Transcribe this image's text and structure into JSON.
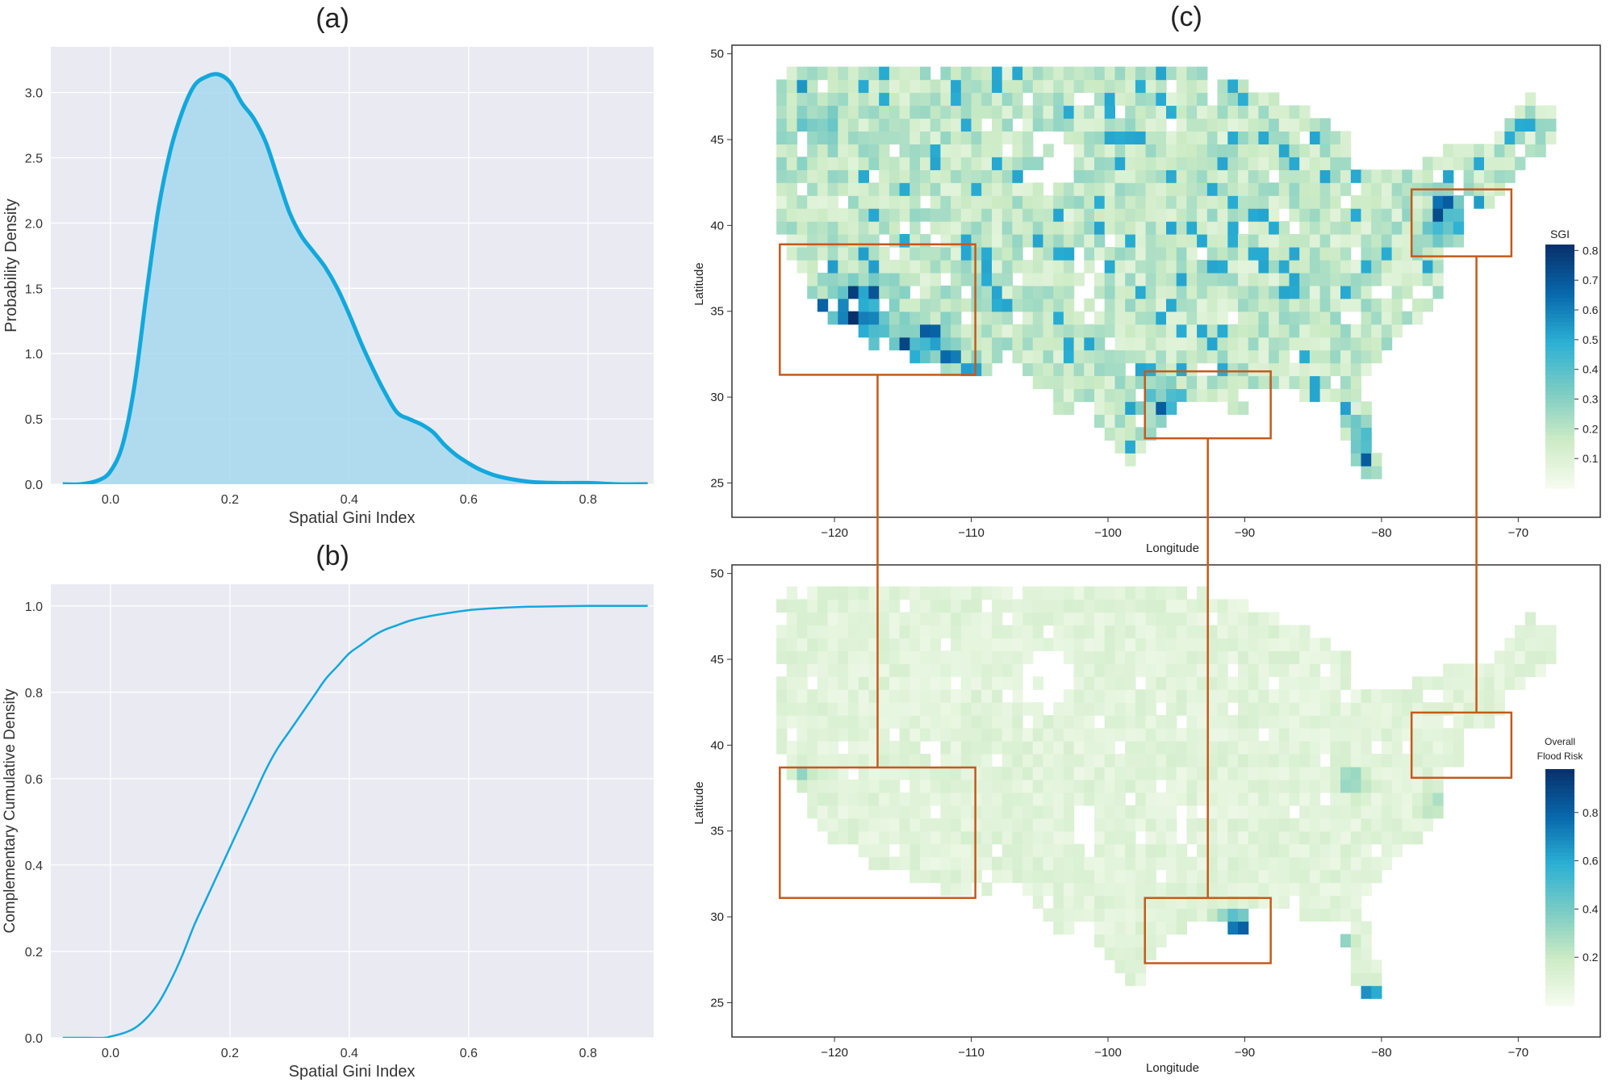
{
  "panels": {
    "a": {
      "label": "(a)"
    },
    "b": {
      "label": "(b)"
    },
    "c": {
      "label": "(c)"
    }
  },
  "colors": {
    "curve": "#12a8dc",
    "fill": "#a6d8ef",
    "plot_bg": "#eaeaf2",
    "grid": "#ffffff",
    "inset_box": "#c45a1a",
    "cmap": [
      "#f7fcf0",
      "#ccebc5",
      "#7bccc4",
      "#2bb0d4",
      "#0868ac",
      "#08306b"
    ]
  },
  "chart_data": [
    {
      "id": "a",
      "type": "area",
      "xlabel": "Spatial Gini Index",
      "ylabel": "Probability Density",
      "xlim": [
        -0.1,
        0.91
      ],
      "ylim": [
        0,
        3.35
      ],
      "xticks": [
        0.0,
        0.2,
        0.4,
        0.6,
        0.8
      ],
      "xticklabels": [
        "0.0",
        "0.2",
        "0.4",
        "0.6",
        "0.8"
      ],
      "yticks": [
        0.0,
        0.5,
        1.0,
        1.5,
        2.0,
        2.5,
        3.0
      ],
      "yticklabels": [
        "0.0",
        "0.5",
        "1.0",
        "1.5",
        "2.0",
        "2.5",
        "3.0"
      ],
      "grid": true,
      "x": [
        -0.08,
        -0.05,
        -0.02,
        0.0,
        0.02,
        0.04,
        0.06,
        0.08,
        0.1,
        0.12,
        0.14,
        0.16,
        0.18,
        0.2,
        0.22,
        0.24,
        0.26,
        0.28,
        0.3,
        0.32,
        0.34,
        0.36,
        0.38,
        0.4,
        0.42,
        0.44,
        0.46,
        0.48,
        0.5,
        0.52,
        0.54,
        0.56,
        0.58,
        0.6,
        0.62,
        0.65,
        0.7,
        0.75,
        0.8,
        0.85,
        0.9
      ],
      "y": [
        0.0,
        0.0,
        0.03,
        0.1,
        0.3,
        0.75,
        1.45,
        2.1,
        2.55,
        2.85,
        3.05,
        3.12,
        3.14,
        3.08,
        2.92,
        2.8,
        2.62,
        2.35,
        2.08,
        1.9,
        1.78,
        1.66,
        1.5,
        1.3,
        1.08,
        0.88,
        0.7,
        0.55,
        0.5,
        0.46,
        0.4,
        0.3,
        0.22,
        0.16,
        0.11,
        0.06,
        0.02,
        0.01,
        0.01,
        0.0,
        0.0
      ]
    },
    {
      "id": "b",
      "type": "line",
      "xlabel": "Spatial Gini Index",
      "ylabel": "Complementary Cumulative Density",
      "xlim": [
        -0.1,
        0.91
      ],
      "ylim": [
        0,
        1.05
      ],
      "xticks": [
        0.0,
        0.2,
        0.4,
        0.6,
        0.8
      ],
      "xticklabels": [
        "0.0",
        "0.2",
        "0.4",
        "0.6",
        "0.8"
      ],
      "yticks": [
        0.0,
        0.2,
        0.4,
        0.6,
        0.8,
        1.0
      ],
      "yticklabels": [
        "0.0",
        "0.2",
        "0.4",
        "0.6",
        "0.8",
        "1.0"
      ],
      "grid": true,
      "x": [
        -0.08,
        -0.04,
        -0.01,
        0.0,
        0.02,
        0.04,
        0.06,
        0.08,
        0.1,
        0.12,
        0.14,
        0.16,
        0.18,
        0.2,
        0.22,
        0.24,
        0.26,
        0.28,
        0.3,
        0.32,
        0.34,
        0.36,
        0.38,
        0.4,
        0.42,
        0.44,
        0.46,
        0.48,
        0.5,
        0.52,
        0.55,
        0.6,
        0.65,
        0.7,
        0.75,
        0.8,
        0.85,
        0.9
      ],
      "y": [
        0.0,
        0.0,
        0.0,
        0.003,
        0.01,
        0.022,
        0.045,
        0.08,
        0.13,
        0.19,
        0.26,
        0.32,
        0.38,
        0.44,
        0.5,
        0.56,
        0.62,
        0.67,
        0.71,
        0.75,
        0.79,
        0.83,
        0.86,
        0.89,
        0.91,
        0.93,
        0.945,
        0.955,
        0.965,
        0.972,
        0.98,
        0.99,
        0.995,
        0.998,
        0.999,
        1.0,
        1.0,
        1.0
      ]
    },
    {
      "id": "c_top",
      "type": "heatmap",
      "xlabel": "Longitude",
      "ylabel": "Latitude",
      "xlim": [
        -127.5,
        -64
      ],
      "ylim": [
        23,
        50.5
      ],
      "xticks": [
        -120,
        -110,
        -100,
        -90,
        -80,
        -70
      ],
      "xticklabels": [
        "−120",
        "−110",
        "−100",
        "−90",
        "−80",
        "−70"
      ],
      "yticks": [
        25,
        30,
        35,
        40,
        45,
        50
      ],
      "yticklabels": [
        "25",
        "30",
        "35",
        "40",
        "45",
        "50"
      ],
      "grid": false,
      "colorbar": {
        "title": "SGI",
        "range": [
          0,
          0.82
        ],
        "ticks": [
          0.1,
          0.2,
          0.3,
          0.4,
          0.5,
          0.6,
          0.7,
          0.8
        ],
        "ticklabels": [
          "0.1",
          "0.2",
          "0.3",
          "0.4",
          "0.5",
          "0.6",
          "0.7",
          "0.8"
        ]
      },
      "insets": [
        {
          "lon": [
            -124,
            -109.7
          ],
          "lat": [
            31.3,
            38.9
          ]
        },
        {
          "lon": [
            -97.3,
            -88.1
          ],
          "lat": [
            27.6,
            31.5
          ]
        },
        {
          "lon": [
            -77.8,
            -70.5
          ],
          "lat": [
            38.2,
            42.1
          ]
        }
      ]
    },
    {
      "id": "c_bottom",
      "type": "heatmap",
      "xlabel": "Longitude",
      "ylabel": "Latitude",
      "xlim": [
        -127.5,
        -64
      ],
      "ylim": [
        23,
        50.5
      ],
      "xticks": [
        -120,
        -110,
        -100,
        -90,
        -80,
        -70
      ],
      "xticklabels": [
        "−120",
        "−110",
        "−100",
        "−90",
        "−80",
        "−70"
      ],
      "yticks": [
        25,
        30,
        35,
        40,
        45,
        50
      ],
      "yticklabels": [
        "25",
        "30",
        "35",
        "40",
        "45",
        "50"
      ],
      "grid": false,
      "colorbar": {
        "title_lines": [
          "Overall",
          "Flood Risk"
        ],
        "range": [
          0,
          0.98
        ],
        "ticks": [
          0.2,
          0.4,
          0.6,
          0.8
        ],
        "ticklabels": [
          "0.2",
          "0.4",
          "0.6",
          "0.8"
        ]
      },
      "insets": [
        {
          "lon": [
            -124,
            -109.7
          ],
          "lat": [
            31.1,
            38.7
          ]
        },
        {
          "lon": [
            -97.3,
            -88.1
          ],
          "lat": [
            27.3,
            31.1
          ]
        },
        {
          "lon": [
            -77.8,
            -70.5
          ],
          "lat": [
            38.1,
            41.9
          ]
        }
      ]
    }
  ]
}
